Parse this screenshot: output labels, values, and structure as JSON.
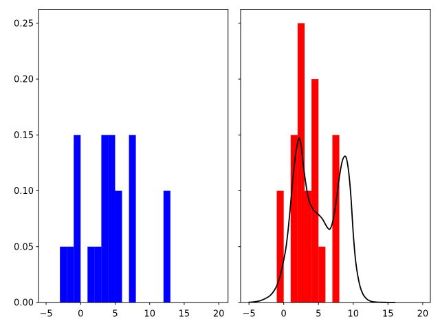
{
  "figure": {
    "background": "#ffffff",
    "spine_color": "#000000",
    "tick_color": "#000000",
    "tick_label_color": "#000000"
  },
  "chart_data": [
    {
      "type": "bar",
      "subtype": "histogram-density",
      "panel": "left",
      "title": "",
      "xlabel": "",
      "ylabel": "",
      "bar_color": "#0000ff",
      "grid": false,
      "legend": null,
      "xlim": [
        -6.1,
        21.35
      ],
      "ylim": [
        0,
        0.2625
      ],
      "bins": [
        {
          "x0": -3,
          "x1": -2,
          "density": 0.05
        },
        {
          "x0": -2,
          "x1": -1,
          "density": 0.05
        },
        {
          "x0": -1,
          "x1": 0,
          "density": 0.15
        },
        {
          "x0": 0,
          "x1": 1,
          "density": 0.0
        },
        {
          "x0": 1,
          "x1": 2,
          "density": 0.05
        },
        {
          "x0": 2,
          "x1": 3,
          "density": 0.05
        },
        {
          "x0": 3,
          "x1": 4,
          "density": 0.15
        },
        {
          "x0": 4,
          "x1": 5,
          "density": 0.15
        },
        {
          "x0": 5,
          "x1": 6,
          "density": 0.1
        },
        {
          "x0": 6,
          "x1": 7,
          "density": 0.0
        },
        {
          "x0": 7,
          "x1": 8,
          "density": 0.15
        },
        {
          "x0": 12,
          "x1": 13,
          "density": 0.1
        }
      ],
      "xticks": {
        "values": [
          -5,
          0,
          5,
          10,
          15,
          20
        ],
        "labels": [
          "−5",
          "0",
          "5",
          "10",
          "15",
          "20"
        ],
        "show_labels": true
      },
      "yticks": {
        "values": [
          0,
          0.05,
          0.1,
          0.15,
          0.2,
          0.25
        ],
        "labels": [
          "0.00",
          "0.05",
          "0.10",
          "0.15",
          "0.20",
          "0.25"
        ],
        "show_labels": true
      }
    },
    {
      "type": "bar+line",
      "subtype": "histogram-density-with-kde",
      "panel": "right",
      "title": "",
      "xlabel": "",
      "ylabel": "",
      "bar_color": "#ff0000",
      "curve_color": "#000000",
      "grid": false,
      "legend": null,
      "xlim": [
        -6.2,
        21.1
      ],
      "ylim": [
        0,
        0.2625
      ],
      "bins": [
        {
          "x0": -1,
          "x1": 0,
          "density": 0.1
        },
        {
          "x0": 0,
          "x1": 1,
          "density": 0.0
        },
        {
          "x0": 1,
          "x1": 2,
          "density": 0.15
        },
        {
          "x0": 2,
          "x1": 3,
          "density": 0.25
        },
        {
          "x0": 3,
          "x1": 4,
          "density": 0.1
        },
        {
          "x0": 4,
          "x1": 5,
          "density": 0.2
        },
        {
          "x0": 5,
          "x1": 6,
          "density": 0.05
        },
        {
          "x0": 7,
          "x1": 8,
          "density": 0.15
        }
      ],
      "kde_points": [
        [
          -5.0,
          0.0002
        ],
        [
          -4.5,
          0.0004
        ],
        [
          -4.0,
          0.0008
        ],
        [
          -3.5,
          0.0014
        ],
        [
          -3.0,
          0.0025
        ],
        [
          -2.5,
          0.004
        ],
        [
          -2.0,
          0.006
        ],
        [
          -1.5,
          0.0095
        ],
        [
          -1.0,
          0.015
        ],
        [
          -0.5,
          0.024
        ],
        [
          0.0,
          0.038
        ],
        [
          0.3,
          0.048
        ],
        [
          0.6,
          0.063
        ],
        [
          0.9,
          0.082
        ],
        [
          1.1,
          0.096
        ],
        [
          1.4,
          0.116
        ],
        [
          1.7,
          0.132
        ],
        [
          2.0,
          0.143
        ],
        [
          2.2,
          0.147
        ],
        [
          2.5,
          0.141
        ],
        [
          2.8,
          0.124
        ],
        [
          3.1,
          0.11
        ],
        [
          3.4,
          0.098
        ],
        [
          3.7,
          0.09
        ],
        [
          4.0,
          0.086
        ],
        [
          4.4,
          0.082
        ],
        [
          4.8,
          0.08
        ],
        [
          5.2,
          0.0775
        ],
        [
          5.6,
          0.0745
        ],
        [
          6.0,
          0.07
        ],
        [
          6.3,
          0.067
        ],
        [
          6.6,
          0.0655
        ],
        [
          6.9,
          0.069
        ],
        [
          7.2,
          0.077
        ],
        [
          7.6,
          0.093
        ],
        [
          8.0,
          0.112
        ],
        [
          8.4,
          0.126
        ],
        [
          8.8,
          0.131
        ],
        [
          9.1,
          0.127
        ],
        [
          9.4,
          0.114
        ],
        [
          9.7,
          0.092
        ],
        [
          10.0,
          0.062
        ],
        [
          10.3,
          0.04
        ],
        [
          10.6,
          0.026
        ],
        [
          11.0,
          0.014
        ],
        [
          11.4,
          0.0075
        ],
        [
          11.8,
          0.004
        ],
        [
          12.2,
          0.002
        ],
        [
          12.6,
          0.001
        ],
        [
          13.0,
          0.0005
        ],
        [
          13.5,
          0.0003
        ],
        [
          14.0,
          0.0002
        ],
        [
          15.0,
          0.0001
        ],
        [
          16.0,
          0.0001
        ]
      ],
      "xticks": {
        "values": [
          -5,
          0,
          5,
          10,
          15,
          20
        ],
        "labels": [
          "−5",
          "0",
          "5",
          "10",
          "15",
          "20"
        ],
        "show_labels": true
      },
      "yticks": {
        "values": [
          0,
          0.05,
          0.1,
          0.15,
          0.2,
          0.25
        ],
        "labels": [
          "0.00",
          "0.05",
          "0.10",
          "0.15",
          "0.20",
          "0.25"
        ],
        "show_labels": false
      }
    }
  ]
}
